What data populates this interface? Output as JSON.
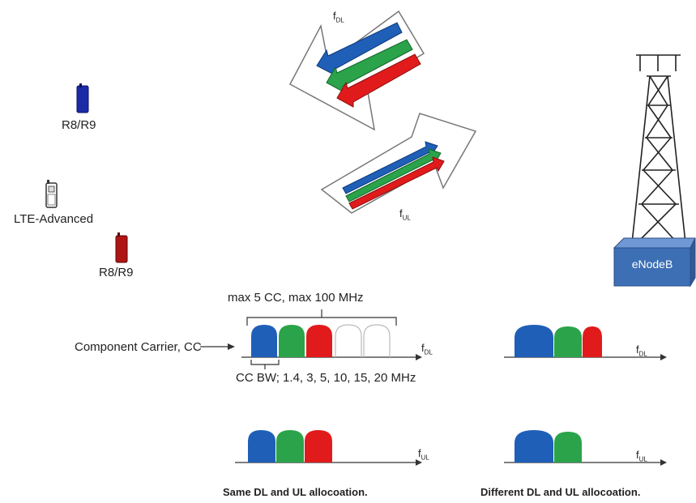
{
  "devices": [
    {
      "label": "R8/R9",
      "color": "#1c2aa8"
    },
    {
      "label": "LTE-Advanced",
      "color": "#ffffff"
    },
    {
      "label": "R8/R9",
      "color": "#b01515"
    }
  ],
  "arrows": {
    "dl_label": "f",
    "dl_sub": "DL",
    "ul_label": "f",
    "ul_sub": "UL"
  },
  "enodeb": {
    "label": "eNodeB",
    "color": "#3d6fb5"
  },
  "carrier_colors": {
    "blue": "#1f5fb8",
    "green": "#2aa34a",
    "red": "#e11b1b"
  },
  "labels": {
    "max_cc": "max 5 CC, max 100 MHz",
    "component_carrier": "Component Carrier, CC",
    "cc_bw": "CC BW; 1.4, 3, 5, 10, 15, 20 MHz",
    "same_alloc": "Same DL and UL allocoation.",
    "diff_alloc": "Different DL and UL allocoation."
  },
  "axes": {
    "same_dl": {
      "f": "f",
      "sub": "DL"
    },
    "same_ul": {
      "f": "f",
      "sub": "UL"
    },
    "diff_dl": {
      "f": "f",
      "sub": "DL"
    },
    "diff_ul": {
      "f": "f",
      "sub": "UL"
    }
  }
}
